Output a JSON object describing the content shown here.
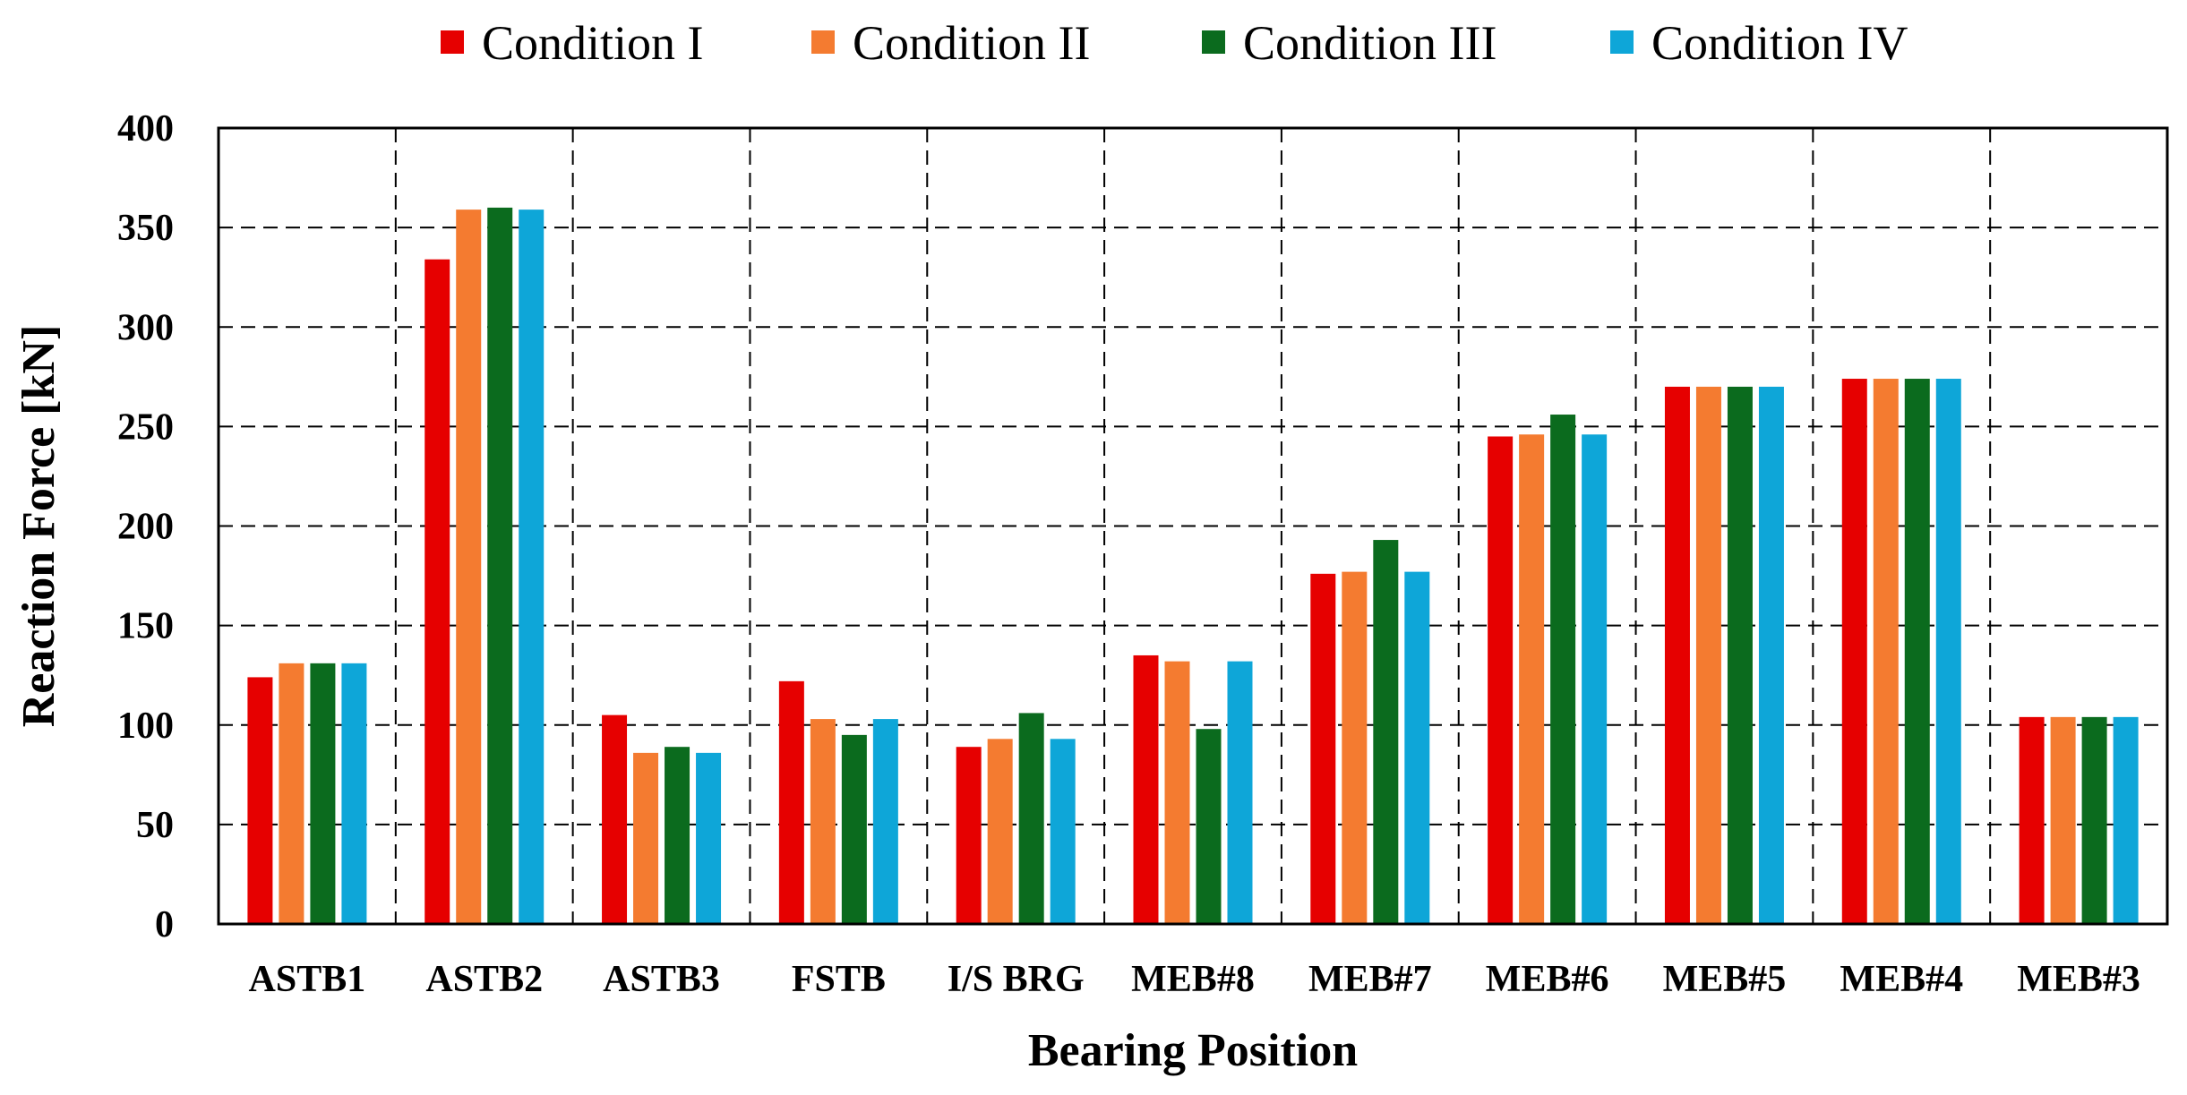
{
  "chart_data": {
    "type": "bar",
    "xlabel": "Bearing Position",
    "ylabel": "Reaction Force [kN]",
    "ylim": [
      0,
      400
    ],
    "yticks": [
      "0",
      "50",
      "100",
      "150",
      "200",
      "250",
      "300",
      "350",
      "400"
    ],
    "grid": true,
    "legend_position": "top",
    "categories": [
      "ASTB1",
      "ASTB2",
      "ASTB3",
      "FSTB",
      "I/S BRG",
      "MEB#8",
      "MEB#7",
      "MEB#6",
      "MEB#5",
      "MEB#4",
      "MEB#3"
    ],
    "series": [
      {
        "name": "Condition I",
        "color": "#e60000",
        "values": [
          124,
          334,
          105,
          122,
          89,
          135,
          176,
          245,
          270,
          274,
          104
        ]
      },
      {
        "name": "Condition II",
        "color": "#f47b30",
        "values": [
          131,
          359,
          86,
          103,
          93,
          132,
          177,
          246,
          270,
          274,
          104
        ]
      },
      {
        "name": "Condition III",
        "color": "#0b6b1e",
        "values": [
          131,
          360,
          89,
          95,
          106,
          98,
          193,
          256,
          270,
          274,
          104
        ]
      },
      {
        "name": "Condition IV",
        "color": "#0ea6d8",
        "values": [
          131,
          359,
          86,
          103,
          93,
          132,
          177,
          246,
          270,
          274,
          104
        ]
      }
    ]
  }
}
